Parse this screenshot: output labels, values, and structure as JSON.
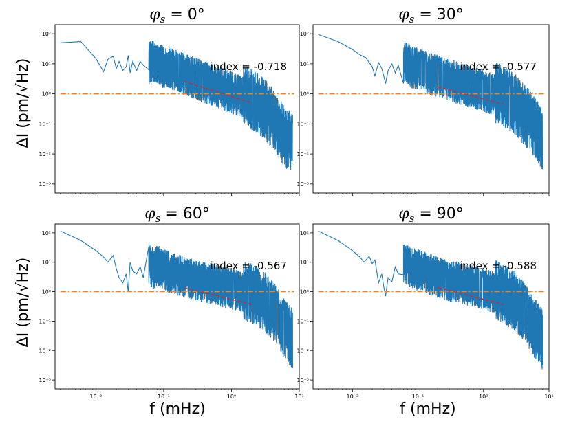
{
  "chart_data": [
    {
      "type": "line",
      "title": "φs = 0°",
      "title_parts": {
        "sym": "φ",
        "sub": "s",
        "rest": " = 0°"
      },
      "xscale": "log",
      "yscale": "log",
      "xlim": [
        0.0025,
        10
      ],
      "ylim": [
        0.0005,
        200
      ],
      "xticks": [
        "10⁻²",
        "10⁻¹",
        "10⁰",
        "10¹"
      ],
      "yticks": [
        "10²",
        "10¹",
        "10⁰",
        "10⁻¹",
        "10⁻²",
        "10⁻³"
      ],
      "annotation": "index = -0.718",
      "index": -0.718,
      "series": [
        {
          "name": "spectrum",
          "color": "#1f77b4",
          "x": [
            0.003,
            0.006,
            0.01,
            0.013,
            0.015,
            0.018,
            0.02,
            0.022,
            0.025,
            0.028,
            0.03,
            0.032,
            0.035,
            0.04,
            0.045,
            0.05,
            0.06,
            0.07,
            0.08,
            0.1,
            0.12,
            0.15,
            0.2,
            0.3,
            0.5,
            0.7,
            1.0,
            1.5,
            2.0,
            3.0,
            4.0,
            5.0,
            6.0,
            7.0,
            8.0
          ],
          "y": [
            50,
            55,
            15,
            5.5,
            14,
            18,
            7,
            12,
            6,
            8,
            19,
            5,
            12,
            6,
            12,
            9,
            7,
            8,
            6,
            5,
            4.5,
            4,
            3,
            2,
            1.3,
            1.0,
            0.7,
            0.5,
            0.35,
            0.18,
            0.08,
            0.04,
            0.02,
            0.015,
            0.01
          ],
          "noise_from": 0.06
        },
        {
          "name": "reference",
          "color": "#ff7f0e",
          "dash": "dashdot",
          "x": [
            0.003,
            8.5
          ],
          "y": [
            1,
            1
          ]
        },
        {
          "name": "fit",
          "color": "#d62728",
          "dash": "dashed",
          "x": [
            0.2,
            2.0
          ],
          "y": [
            2.6,
            0.5
          ]
        }
      ]
    },
    {
      "type": "line",
      "title": "φs = 30°",
      "title_parts": {
        "sym": "φ",
        "sub": "s",
        "rest": " = 30°"
      },
      "xscale": "log",
      "yscale": "log",
      "xlim": [
        0.0025,
        10
      ],
      "ylim": [
        0.0005,
        200
      ],
      "xticks": [
        "10⁻²",
        "10⁻¹",
        "10⁰",
        "10¹"
      ],
      "yticks": [
        "10²",
        "10¹",
        "10⁰",
        "10⁻¹",
        "10⁻²",
        "10⁻³"
      ],
      "annotation": "index = -0.577",
      "index": -0.577,
      "series": [
        {
          "name": "spectrum",
          "color": "#1f77b4",
          "x": [
            0.003,
            0.006,
            0.01,
            0.013,
            0.016,
            0.02,
            0.022,
            0.025,
            0.028,
            0.03,
            0.032,
            0.035,
            0.04,
            0.045,
            0.05,
            0.06,
            0.07,
            0.08,
            0.1,
            0.12,
            0.15,
            0.2,
            0.3,
            0.5,
            0.7,
            1.0,
            1.5,
            2.0,
            3.0,
            4.0,
            5.0,
            6.0,
            7.0,
            8.0
          ],
          "y": [
            95,
            55,
            30,
            20,
            16,
            8,
            4,
            11,
            7,
            4,
            2.2,
            6,
            10,
            5,
            9,
            6,
            7,
            5,
            4.5,
            4,
            3,
            2.5,
            1.8,
            1.3,
            1.0,
            0.8,
            0.6,
            0.45,
            0.25,
            0.12,
            0.07,
            0.04,
            0.025,
            0.015
          ],
          "noise_from": 0.06
        },
        {
          "name": "reference",
          "color": "#ff7f0e",
          "dash": "dashdot",
          "x": [
            0.003,
            8.5
          ],
          "y": [
            1,
            1
          ]
        },
        {
          "name": "fit",
          "color": "#d62728",
          "dash": "dashed",
          "x": [
            0.2,
            2.0
          ],
          "y": [
            1.7,
            0.45
          ]
        }
      ]
    },
    {
      "type": "line",
      "title": "φs = 60°",
      "title_parts": {
        "sym": "φ",
        "sub": "s",
        "rest": " = 60°"
      },
      "xscale": "log",
      "yscale": "log",
      "xlim": [
        0.0025,
        10
      ],
      "ylim": [
        0.0005,
        200
      ],
      "xticks": [
        "10⁻²",
        "10⁻¹",
        "10⁰",
        "10¹"
      ],
      "yticks": [
        "10²",
        "10¹",
        "10⁰",
        "10⁻¹",
        "10⁻²",
        "10⁻³"
      ],
      "annotation": "index = -0.567",
      "index": -0.567,
      "series": [
        {
          "name": "spectrum",
          "color": "#1f77b4",
          "x": [
            0.003,
            0.006,
            0.01,
            0.013,
            0.015,
            0.018,
            0.02,
            0.022,
            0.025,
            0.028,
            0.03,
            0.032,
            0.035,
            0.04,
            0.045,
            0.05,
            0.06,
            0.07,
            0.08,
            0.1,
            0.12,
            0.15,
            0.2,
            0.3,
            0.5,
            0.7,
            1.0,
            1.5,
            2.0,
            3.0,
            4.0,
            5.0,
            6.0,
            7.0,
            8.0
          ],
          "y": [
            115,
            55,
            25,
            15,
            10,
            17,
            6,
            3,
            2,
            4,
            1,
            10,
            5,
            4,
            7,
            3,
            6,
            4,
            5,
            3.5,
            3,
            2.5,
            2,
            1.5,
            1.2,
            1.0,
            0.8,
            0.6,
            0.45,
            0.25,
            0.12,
            0.06,
            0.03,
            0.02,
            0.012
          ],
          "noise_from": 0.06
        },
        {
          "name": "reference",
          "color": "#ff7f0e",
          "dash": "dashdot",
          "x": [
            0.003,
            8.5
          ],
          "y": [
            1,
            1
          ]
        },
        {
          "name": "fit",
          "color": "#d62728",
          "dash": "dashed",
          "x": [
            0.2,
            2.0
          ],
          "y": [
            1.35,
            0.37
          ]
        }
      ]
    },
    {
      "type": "line",
      "title": "φs = 90°",
      "title_parts": {
        "sym": "φ",
        "sub": "s",
        "rest": " = 90°"
      },
      "xscale": "log",
      "yscale": "log",
      "xlim": [
        0.0025,
        10
      ],
      "ylim": [
        0.0005,
        200
      ],
      "xticks": [
        "10⁻²",
        "10⁻¹",
        "10⁰",
        "10¹"
      ],
      "yticks": [
        "10²",
        "10¹",
        "10⁰",
        "10⁻¹",
        "10⁻²",
        "10⁻³"
      ],
      "annotation": "index = -0.588",
      "index": -0.588,
      "series": [
        {
          "name": "spectrum",
          "color": "#1f77b4",
          "x": [
            0.003,
            0.006,
            0.01,
            0.013,
            0.015,
            0.018,
            0.02,
            0.022,
            0.025,
            0.028,
            0.03,
            0.032,
            0.035,
            0.04,
            0.045,
            0.05,
            0.06,
            0.07,
            0.08,
            0.1,
            0.12,
            0.15,
            0.2,
            0.3,
            0.5,
            0.7,
            1.0,
            1.5,
            2.0,
            3.0,
            4.0,
            5.0,
            6.0,
            7.0,
            8.0
          ],
          "y": [
            115,
            55,
            25,
            15,
            10,
            16,
            9,
            12,
            2,
            4,
            1.5,
            0.7,
            3,
            2.2,
            7,
            4,
            6,
            5,
            4,
            3.5,
            3,
            2.5,
            2,
            1.5,
            1.2,
            1.0,
            0.8,
            0.6,
            0.45,
            0.25,
            0.12,
            0.06,
            0.03,
            0.02,
            0.012
          ],
          "noise_from": 0.06
        },
        {
          "name": "reference",
          "color": "#ff7f0e",
          "dash": "dashdot",
          "x": [
            0.003,
            8.5
          ],
          "y": [
            1,
            1
          ]
        },
        {
          "name": "fit",
          "color": "#d62728",
          "dash": "dashed",
          "x": [
            0.2,
            2.0
          ],
          "y": [
            1.4,
            0.37
          ]
        }
      ]
    }
  ],
  "shared_labels": {
    "ylabel_top": "ΔI (pm/√Hz)",
    "ylabel_bottom": "ΔI (pm/√Hz)",
    "xlabel_left": "f (mHz)",
    "xlabel_right": "f (mHz)"
  }
}
